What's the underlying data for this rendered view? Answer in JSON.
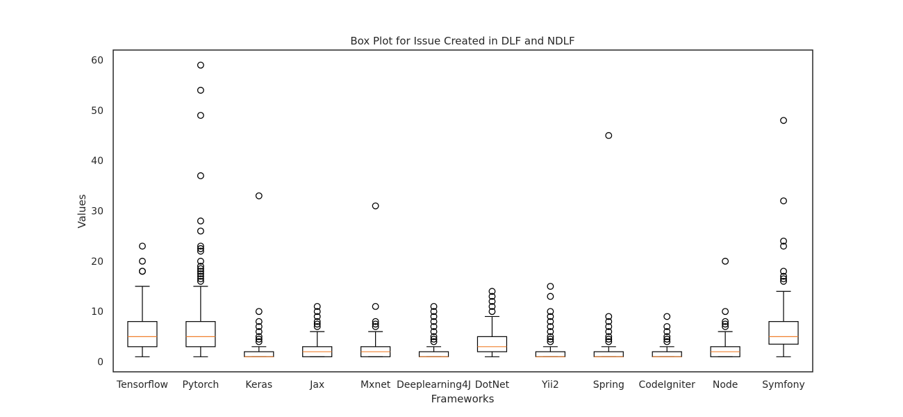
{
  "chart_data": {
    "type": "box",
    "title": "Box Plot for Issue Created in DLF and NDLF",
    "xlabel": "Frameworks",
    "ylabel": "Values",
    "ylim": [
      -2,
      62
    ],
    "yticks": [
      0,
      10,
      20,
      30,
      40,
      50,
      60
    ],
    "grid": false,
    "colors": {
      "box": "#000000",
      "median": "#f07f2c",
      "frame": "#262626"
    },
    "categories": [
      "Tensorflow",
      "Pytorch",
      "Keras",
      "Jax",
      "Mxnet",
      "Deeplearning4J",
      "DotNet",
      "Yii2",
      "Spring",
      "CodeIgniter",
      "Node",
      "Symfony"
    ],
    "boxes": [
      {
        "whisker_low": 1,
        "q1": 3,
        "median": 5,
        "q3": 8,
        "whisker_high": 15,
        "outliers": [
          18,
          18,
          20,
          23
        ]
      },
      {
        "whisker_low": 1,
        "q1": 3,
        "median": 5,
        "q3": 8,
        "whisker_high": 15,
        "outliers": [
          16,
          16.5,
          17,
          17.5,
          18,
          18.5,
          19,
          20,
          22,
          22.5,
          23,
          26,
          28,
          37,
          49,
          54,
          59
        ]
      },
      {
        "whisker_low": 1,
        "q1": 1,
        "median": 1,
        "q3": 2,
        "whisker_high": 3,
        "outliers": [
          4,
          4.5,
          5,
          6,
          7,
          8,
          10,
          33
        ]
      },
      {
        "whisker_low": 1,
        "q1": 1,
        "median": 2,
        "q3": 3,
        "whisker_high": 6,
        "outliers": [
          7,
          7.5,
          8,
          9,
          10,
          11
        ]
      },
      {
        "whisker_low": 1,
        "q1": 1,
        "median": 2,
        "q3": 3,
        "whisker_high": 6,
        "outliers": [
          7,
          7.5,
          8,
          11,
          31
        ]
      },
      {
        "whisker_low": 1,
        "q1": 1,
        "median": 1,
        "q3": 2,
        "whisker_high": 3,
        "outliers": [
          4,
          4.5,
          5,
          6,
          7,
          8,
          9,
          10,
          11
        ]
      },
      {
        "whisker_low": 1,
        "q1": 2,
        "median": 3,
        "q3": 5,
        "whisker_high": 9,
        "outliers": [
          10,
          11,
          12,
          13,
          14
        ]
      },
      {
        "whisker_low": 1,
        "q1": 1,
        "median": 1,
        "q3": 2,
        "whisker_high": 3,
        "outliers": [
          4,
          4.5,
          5,
          6,
          7,
          8,
          9,
          10,
          13,
          15
        ]
      },
      {
        "whisker_low": 1,
        "q1": 1,
        "median": 1,
        "q3": 2,
        "whisker_high": 3,
        "outliers": [
          4,
          4.5,
          5,
          6,
          7,
          8,
          9,
          45
        ]
      },
      {
        "whisker_low": 1,
        "q1": 1,
        "median": 1,
        "q3": 2,
        "whisker_high": 3,
        "outliers": [
          4,
          4.5,
          5,
          6,
          7,
          9
        ]
      },
      {
        "whisker_low": 1,
        "q1": 1,
        "median": 2,
        "q3": 3,
        "whisker_high": 6,
        "outliers": [
          7,
          7.5,
          8,
          10,
          20
        ]
      },
      {
        "whisker_low": 1,
        "q1": 3.5,
        "median": 5,
        "q3": 8,
        "whisker_high": 14,
        "outliers": [
          16,
          16.5,
          17,
          18,
          23,
          24,
          32,
          48
        ]
      }
    ]
  }
}
